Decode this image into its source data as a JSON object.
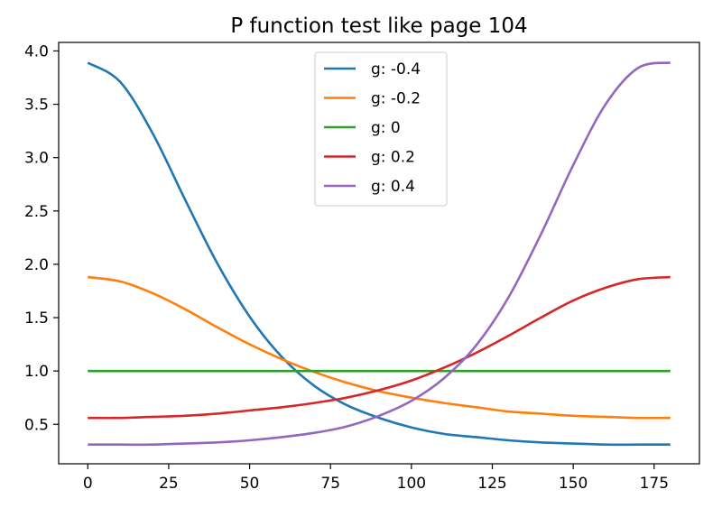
{
  "chart_data": {
    "type": "line",
    "title": "P function test like page 104",
    "xlabel": "",
    "ylabel": "",
    "xlim": [
      -9,
      189
    ],
    "ylim": [
      0.13,
      4.08
    ],
    "xticks": [
      0,
      25,
      50,
      75,
      100,
      125,
      150,
      175
    ],
    "xtick_labels": [
      "0",
      "25",
      "50",
      "75",
      "100",
      "125",
      "150",
      "175"
    ],
    "yticks": [
      0.5,
      1.0,
      1.5,
      2.0,
      2.5,
      3.0,
      3.5,
      4.0
    ],
    "ytick_labels": [
      "0.5",
      "1.0",
      "1.5",
      "2.0",
      "2.5",
      "3.0",
      "3.5",
      "4.0"
    ],
    "grid": false,
    "legend_position": "upper-center",
    "x": [
      0,
      10,
      20,
      30,
      40,
      50,
      60,
      70,
      80,
      90,
      100,
      110,
      120,
      130,
      140,
      150,
      160,
      170,
      180
    ],
    "series": [
      {
        "name": "g: -0.4",
        "color": "#1f77b4",
        "values": [
          3.89,
          3.71,
          3.23,
          2.61,
          2.01,
          1.51,
          1.13,
          0.86,
          0.68,
          0.56,
          0.47,
          0.41,
          0.38,
          0.35,
          0.33,
          0.32,
          0.31,
          0.31,
          0.31
        ]
      },
      {
        "name": "g: -0.2",
        "color": "#ff7f0e",
        "values": [
          1.88,
          1.84,
          1.73,
          1.58,
          1.41,
          1.25,
          1.11,
          0.99,
          0.89,
          0.81,
          0.75,
          0.7,
          0.66,
          0.62,
          0.6,
          0.58,
          0.57,
          0.56,
          0.56
        ]
      },
      {
        "name": "g: 0",
        "color": "#2ca02c",
        "values": [
          1.0,
          1.0,
          1.0,
          1.0,
          1.0,
          1.0,
          1.0,
          1.0,
          1.0,
          1.0,
          1.0,
          1.0,
          1.0,
          1.0,
          1.0,
          1.0,
          1.0,
          1.0,
          1.0
        ]
      },
      {
        "name": "g: 0.2",
        "color": "#d62728",
        "values": [
          0.56,
          0.56,
          0.57,
          0.58,
          0.6,
          0.63,
          0.66,
          0.7,
          0.75,
          0.82,
          0.91,
          1.03,
          1.17,
          1.33,
          1.5,
          1.66,
          1.78,
          1.86,
          1.88
        ]
      },
      {
        "name": "g: 0.4",
        "color": "#9467bd",
        "values": [
          0.31,
          0.31,
          0.31,
          0.32,
          0.33,
          0.35,
          0.38,
          0.42,
          0.48,
          0.58,
          0.72,
          0.93,
          1.24,
          1.69,
          2.28,
          2.93,
          3.5,
          3.84,
          3.89
        ]
      }
    ]
  }
}
